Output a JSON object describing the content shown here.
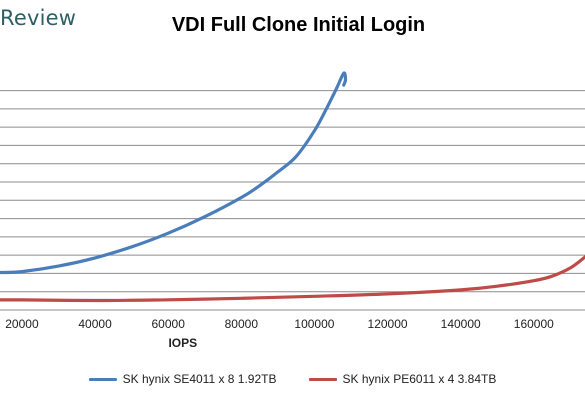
{
  "header": {
    "brand_text": "Review"
  },
  "chart_data": {
    "type": "line",
    "title": "VDI Full Clone Initial Login",
    "xlabel": "IOPS",
    "ylabel": "",
    "xlim": [
      14000,
      174000
    ],
    "ylim": [
      0,
      14
    ],
    "x_ticks": [
      20000,
      40000,
      60000,
      80000,
      100000,
      120000,
      140000,
      160000
    ],
    "y_gridlines": [
      1,
      2,
      3,
      4,
      5,
      6,
      7,
      8,
      9,
      10,
      11,
      12
    ],
    "y_tick_labels_visible": false,
    "grid": true,
    "legend_position": "bottom",
    "series": [
      {
        "name": "SK hynix SE4011 x 8 1.92TB",
        "color": "#4a7ebb",
        "x": [
          14000,
          20000,
          30000,
          40000,
          50000,
          60000,
          70000,
          80000,
          85000,
          90000,
          95000,
          100000,
          103000,
          106000,
          108000,
          108500,
          108000
        ],
        "y": [
          2.05,
          2.1,
          2.4,
          2.85,
          3.45,
          4.2,
          5.1,
          6.15,
          6.8,
          7.55,
          8.4,
          9.8,
          10.9,
          12.1,
          12.95,
          12.6,
          12.3
        ]
      },
      {
        "name": "SK hynix PE6011 x 4 3.84TB",
        "color": "#be4b48",
        "x": [
          14000,
          20000,
          40000,
          60000,
          80000,
          100000,
          120000,
          140000,
          150000,
          160000,
          165000,
          170000,
          174000
        ],
        "y": [
          0.55,
          0.55,
          0.52,
          0.56,
          0.64,
          0.75,
          0.88,
          1.1,
          1.3,
          1.6,
          1.85,
          2.3,
          2.9
        ]
      }
    ]
  }
}
